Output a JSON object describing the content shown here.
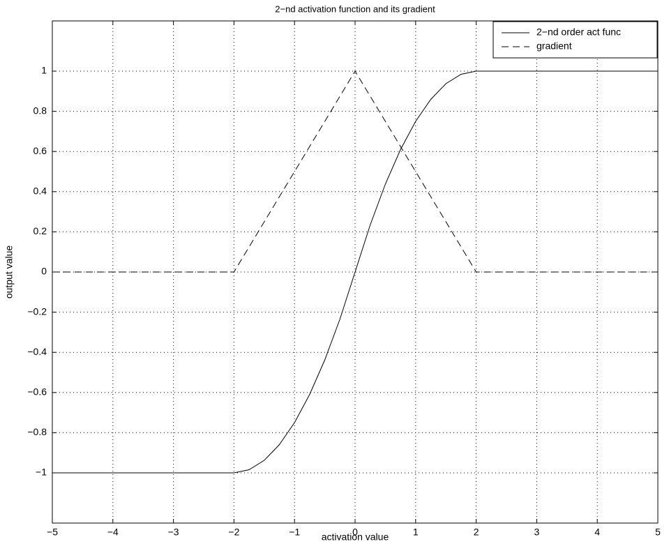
{
  "chart_data": {
    "type": "line",
    "title": "2−nd activation function and its gradient",
    "xlabel": "activation value",
    "ylabel": "output value",
    "x": [
      -5,
      -4,
      -3,
      -2,
      -1.75,
      -1.5,
      -1.25,
      -1,
      -0.75,
      -0.5,
      -0.25,
      0,
      0.25,
      0.5,
      0.75,
      1,
      1.25,
      1.5,
      1.75,
      2,
      3,
      4,
      5
    ],
    "series": [
      {
        "name": "2−nd order act func",
        "color": "#000000",
        "dash": "solid",
        "values": [
          -1,
          -1,
          -1,
          -1,
          -0.984375,
          -0.9375,
          -0.859375,
          -0.75,
          -0.609375,
          -0.4375,
          -0.234375,
          0,
          0.234375,
          0.4375,
          0.609375,
          0.75,
          0.859375,
          0.9375,
          0.984375,
          1,
          1,
          1,
          1
        ]
      },
      {
        "name": "gradient",
        "color": "#000000",
        "dash": "dashed",
        "values": [
          0,
          0,
          0,
          0,
          0.125,
          0.25,
          0.375,
          0.5,
          0.625,
          0.75,
          0.875,
          1,
          0.875,
          0.75,
          0.625,
          0.5,
          0.375,
          0.25,
          0.125,
          0,
          0,
          0,
          0
        ]
      }
    ],
    "xlim": [
      -5,
      5
    ],
    "xticks": [
      {
        "value": -5,
        "label": "−5"
      },
      {
        "value": -4,
        "label": "−4"
      },
      {
        "value": -3,
        "label": "−3"
      },
      {
        "value": -2,
        "label": "−2"
      },
      {
        "value": -1,
        "label": "−1"
      },
      0,
      1,
      2,
      3,
      4,
      5
    ],
    "ylim": [
      -1.25,
      1.25
    ],
    "yticks": [
      {
        "value": -1,
        "label": "−1"
      },
      {
        "value": -0.8,
        "label": "−0.8"
      },
      {
        "value": -0.6,
        "label": "−0.6"
      },
      {
        "value": -0.4,
        "label": "−0.4"
      },
      {
        "value": -0.2,
        "label": "−0.2"
      },
      0,
      0.2,
      0.4,
      0.6,
      0.8,
      1
    ],
    "grid": true,
    "legend": "upper right"
  }
}
